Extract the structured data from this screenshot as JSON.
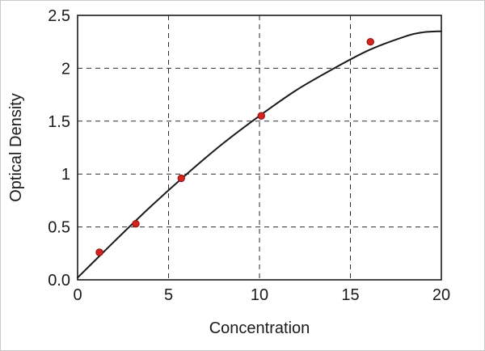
{
  "chart_data": {
    "type": "scatter",
    "title": "",
    "xlabel": "Concentration",
    "ylabel": "Optical Density",
    "xlim": [
      0,
      20
    ],
    "ylim": [
      0,
      2.5
    ],
    "x_ticks": [
      0,
      5,
      10,
      15,
      20
    ],
    "x_tick_labels": [
      "0",
      "5",
      "10",
      "15",
      "20"
    ],
    "y_ticks": [
      0,
      0.5,
      1,
      1.5,
      2,
      2.5
    ],
    "y_tick_labels": [
      "0.0",
      "0.5",
      "1",
      "1.5",
      "2",
      "2.5"
    ],
    "grid": true,
    "grid_style": "dashed",
    "legend": "none",
    "series": [
      {
        "name": "fitted-curve",
        "type": "line",
        "color": "#1a1a1a",
        "width": 2,
        "x": [
          0,
          2,
          4,
          6,
          8,
          10,
          12,
          14,
          16,
          18,
          19,
          20
        ],
        "y": [
          0.02,
          0.36,
          0.69,
          1.0,
          1.29,
          1.55,
          1.79,
          1.99,
          2.17,
          2.3,
          2.34,
          2.35
        ]
      },
      {
        "name": "standard-points",
        "type": "scatter",
        "marker": "circle",
        "color": "#d42420",
        "edge_color": "#8f100d",
        "x": [
          1.2,
          3.2,
          5.7,
          10.1,
          16.1
        ],
        "y": [
          0.26,
          0.53,
          0.96,
          1.55,
          2.25
        ]
      }
    ],
    "colors": {
      "grid": "#2e2e2e",
      "axis": "#1a1a1a",
      "text": "#1a1a1a",
      "background": "#ffffff"
    }
  }
}
